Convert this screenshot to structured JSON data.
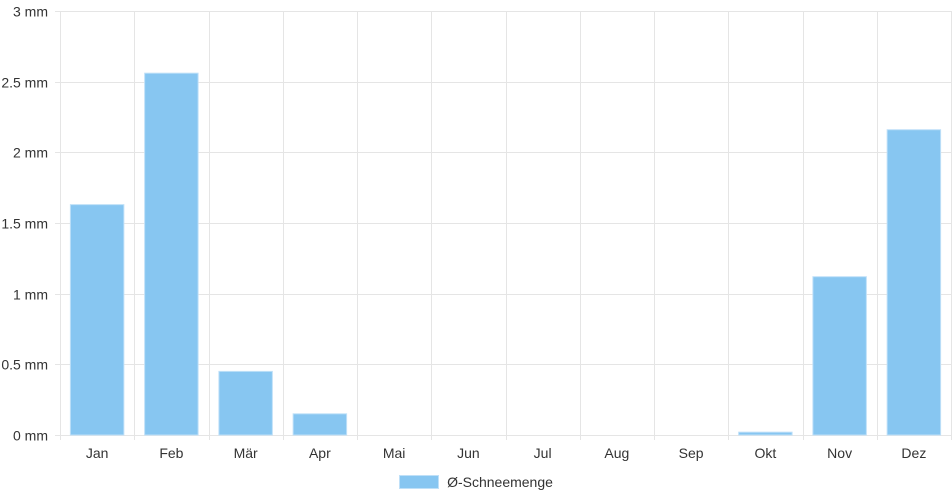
{
  "chart_data": {
    "type": "bar",
    "categories": [
      "Jan",
      "Feb",
      "Mär",
      "Apr",
      "Mai",
      "Jun",
      "Jul",
      "Aug",
      "Sep",
      "Okt",
      "Nov",
      "Dez"
    ],
    "series": [
      {
        "name": "Ø-Schneemenge",
        "values": [
          1.63,
          2.56,
          0.45,
          0.15,
          0,
          0,
          0,
          0,
          0,
          0.02,
          1.12,
          2.16
        ]
      }
    ],
    "y_ticks": [
      "0 mm",
      "0.5 mm",
      "1 mm",
      "1.5 mm",
      "2 mm",
      "2.5 mm",
      "3 mm"
    ],
    "ylim": [
      0,
      3
    ],
    "y_step": 0.5,
    "grid": true,
    "legend_position": "bottom",
    "colors": {
      "bar": "#87c6f1",
      "bar_border": "#bfe0f8",
      "grid": "#e5e5e5"
    }
  }
}
